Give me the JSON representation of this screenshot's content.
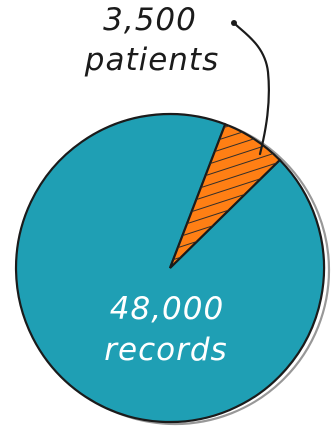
{
  "chart_data": {
    "type": "pie",
    "series": [
      {
        "name": "",
        "slices": [
          {
            "label": "48,000 records",
            "value": 48000,
            "color": "#1f9fb4"
          },
          {
            "label": "3,500 patients",
            "value": 3500,
            "color": "#ff7f14"
          }
        ]
      }
    ],
    "annotations": [
      {
        "line1": "3,500",
        "line2": "patients"
      },
      {
        "line1": "48,000",
        "line2": "records"
      }
    ],
    "grid": false,
    "legend": "none"
  }
}
